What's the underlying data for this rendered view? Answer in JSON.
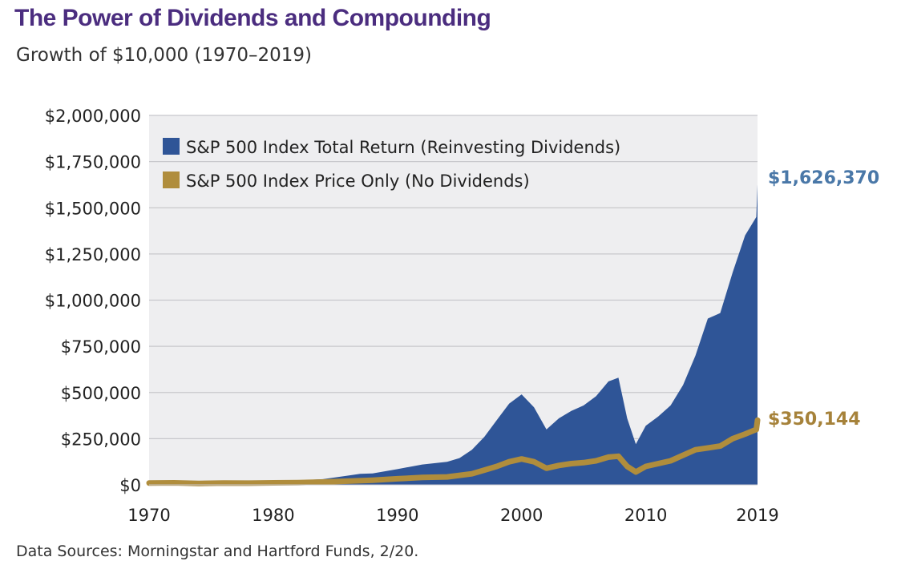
{
  "header": {
    "title": "The Power of Dividends and Compounding",
    "subtitle": "Growth of $10,000 (1970–2019)"
  },
  "footer": {
    "source": "Data Sources: Morningstar and Hartford Funds, 2/20."
  },
  "colors": {
    "total_return": "#2f5597",
    "price_only": "#b08d3c",
    "end_label_total": "#4a78a8",
    "end_label_price": "#a6823a",
    "plot_bg": "#eeeef0",
    "grid": "#c8c8cc"
  },
  "chart_data": {
    "type": "area",
    "title": "The Power of Dividends and Compounding",
    "subtitle": "Growth of $10,000 (1970–2019)",
    "xlabel": "",
    "ylabel": "",
    "xlim": [
      1970,
      2019
    ],
    "ylim": [
      0,
      2000000
    ],
    "x_ticks": [
      1970,
      1980,
      1990,
      2000,
      2010,
      2019
    ],
    "x_tick_labels": [
      "1970",
      "1980",
      "1990",
      "2000",
      "2010",
      "2019"
    ],
    "y_ticks": [
      0,
      250000,
      500000,
      750000,
      1000000,
      1250000,
      1500000,
      1750000,
      2000000
    ],
    "y_tick_labels": [
      "$0",
      "$250,000",
      "$500,000",
      "$750,000",
      "$1,000,000",
      "$1,250,000",
      "$1,500,000",
      "$1,750,000",
      "$2,000,000"
    ],
    "grid": true,
    "legend_position": "top-left",
    "series": [
      {
        "name": "S&P 500 Index Total Return (Reinvesting Dividends)",
        "style": "area",
        "end_label": "$1,626,370",
        "x": [
          1970,
          1972,
          1974,
          1976,
          1978,
          1980,
          1982,
          1984,
          1986,
          1987,
          1988,
          1990,
          1992,
          1994,
          1995,
          1996,
          1997,
          1998,
          1999,
          2000,
          2001,
          2002,
          2003,
          2004,
          2005,
          2006,
          2007,
          2007.8,
          2008.5,
          2009.2,
          2010,
          2011,
          2012,
          2013,
          2014,
          2015,
          2016,
          2017,
          2018,
          2018.9,
          2019
        ],
        "values": [
          10000,
          12000,
          9000,
          13000,
          14000,
          19000,
          24000,
          31000,
          50000,
          60000,
          62000,
          85000,
          110000,
          125000,
          145000,
          190000,
          260000,
          350000,
          440000,
          490000,
          420000,
          300000,
          360000,
          400000,
          430000,
          480000,
          560000,
          580000,
          360000,
          220000,
          320000,
          370000,
          430000,
          540000,
          700000,
          900000,
          930000,
          1150000,
          1350000,
          1450000,
          1626370
        ]
      },
      {
        "name": "S&P 500 Index Price Only (No Dividends)",
        "style": "line",
        "end_label": "$350,144",
        "x": [
          1970,
          1972,
          1974,
          1976,
          1978,
          1980,
          1982,
          1984,
          1986,
          1988,
          1990,
          1992,
          1994,
          1996,
          1997,
          1998,
          1999,
          2000,
          2001,
          2002,
          2003,
          2004,
          2005,
          2006,
          2007,
          2007.8,
          2008.5,
          2009.2,
          2010,
          2011,
          2012,
          2013,
          2014,
          2015,
          2016,
          2017,
          2018,
          2018.9,
          2019
        ],
        "values": [
          10000,
          11000,
          8000,
          10000,
          9000,
          11000,
          12000,
          15000,
          20000,
          25000,
          33000,
          40000,
          43000,
          60000,
          80000,
          100000,
          125000,
          140000,
          125000,
          90000,
          105000,
          115000,
          120000,
          130000,
          150000,
          155000,
          100000,
          70000,
          100000,
          115000,
          130000,
          160000,
          190000,
          200000,
          210000,
          250000,
          275000,
          300000,
          350144
        ]
      }
    ]
  }
}
